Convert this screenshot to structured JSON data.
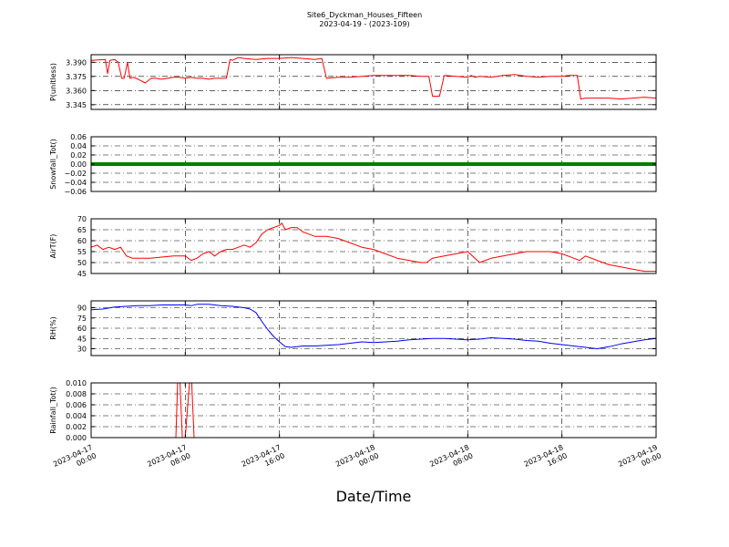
{
  "figure": {
    "title_line1": "Site6_Dyckman_Houses_Fifteen",
    "title_line2": "2023-04-19 - (2023-109)",
    "xlabel": "Date/Time"
  },
  "chart_data": [
    {
      "type": "line",
      "ylabel": "P(unitless)",
      "ylim": [
        3.34,
        3.398
      ],
      "yticks": [
        3.345,
        3.36,
        3.375,
        3.39
      ],
      "ytick_labels": [
        "3.345",
        "3.360",
        "3.375",
        "3.390"
      ],
      "grid": true,
      "color": "#ff0000",
      "x_unit": "hours since 2023-04-17 00:00",
      "series": [
        {
          "x": [
            0,
            1.2,
            1.4,
            1.6,
            2,
            2.3,
            2.6,
            2.8,
            3.1,
            3.3,
            3.6,
            4.0,
            4.6,
            5.1,
            5.5,
            6,
            6.5,
            7,
            7.5,
            8,
            8.5,
            9,
            9.5,
            10,
            10.5,
            11,
            11.5,
            11.8,
            12,
            12.5,
            13,
            14,
            15,
            16,
            17,
            18,
            19,
            19.6,
            20,
            21,
            22,
            23,
            24,
            25,
            26,
            27,
            28,
            28.7,
            29,
            29.6,
            30,
            31,
            32,
            32.3,
            32.6,
            33,
            34,
            35,
            36,
            37,
            38,
            39,
            40,
            40.6,
            41,
            41.3,
            41.6,
            42,
            43,
            44,
            45,
            46,
            47,
            48
          ],
          "y": [
            3.392,
            3.393,
            3.378,
            3.392,
            3.393,
            3.39,
            3.373,
            3.373,
            3.39,
            3.373,
            3.374,
            3.372,
            3.368,
            3.373,
            3.373,
            3.372,
            3.373,
            3.374,
            3.374,
            3.373,
            3.374,
            3.373,
            3.373,
            3.372,
            3.373,
            3.373,
            3.373,
            3.393,
            3.392,
            3.395,
            3.394,
            3.393,
            3.394,
            3.394,
            3.395,
            3.394,
            3.393,
            3.394,
            3.373,
            3.374,
            3.374,
            3.375,
            3.376,
            3.376,
            3.376,
            3.376,
            3.375,
            3.375,
            3.354,
            3.354,
            3.376,
            3.375,
            3.374,
            3.376,
            3.374,
            3.375,
            3.374,
            3.376,
            3.377,
            3.375,
            3.374,
            3.375,
            3.375,
            3.376,
            3.376,
            3.376,
            3.351,
            3.352,
            3.352,
            3.352,
            3.351,
            3.352,
            3.353,
            3.352
          ]
        }
      ],
      "line_width": 1.0
    },
    {
      "type": "line",
      "ylabel": "Snowfall_Tot()",
      "ylim": [
        -0.06,
        0.06
      ],
      "yticks": [
        -0.06,
        -0.04,
        -0.02,
        0.0,
        0.02,
        0.04,
        0.06
      ],
      "ytick_labels": [
        "−0.06",
        "−0.04",
        "−0.02",
        "0.00",
        "0.02",
        "0.04",
        "0.06"
      ],
      "grid": true,
      "color": "#007f00",
      "series": [
        {
          "x": [
            0,
            48
          ],
          "y": [
            0,
            0
          ]
        }
      ],
      "line_width": 4.0
    },
    {
      "type": "line",
      "ylabel": "AirT(F)",
      "ylim": [
        45,
        70
      ],
      "yticks": [
        45,
        50,
        55,
        60,
        65,
        70
      ],
      "ytick_labels": [
        "45",
        "50",
        "55",
        "60",
        "65",
        "70"
      ],
      "grid": true,
      "color": "#ff0000",
      "series": [
        {
          "x": [
            0,
            0.5,
            1,
            1.5,
            2,
            2.5,
            3,
            3.5,
            4,
            5,
            6,
            7,
            8,
            8.5,
            9,
            9.5,
            10,
            10.5,
            11,
            11.5,
            12,
            12.5,
            13,
            13.5,
            14,
            14.5,
            15,
            15.5,
            16,
            16.2,
            16.5,
            17,
            17.5,
            18,
            18.5,
            19,
            20,
            21,
            22,
            23,
            24,
            25,
            26,
            27,
            28,
            28.5,
            29,
            30,
            31,
            32,
            33,
            34,
            35,
            36,
            37,
            38,
            39,
            40,
            41,
            41.5,
            42,
            43,
            44,
            45,
            46,
            47,
            48
          ],
          "y": [
            57,
            58,
            56,
            57,
            56,
            57,
            53,
            52,
            52,
            52,
            52.5,
            53,
            53,
            51,
            52,
            54,
            55,
            53,
            55,
            56,
            56,
            57,
            58,
            57,
            59,
            63,
            65,
            66,
            67,
            68,
            65,
            66,
            66,
            64,
            63,
            62,
            62,
            61,
            59,
            57,
            56,
            54,
            52,
            51,
            50,
            50,
            52,
            53,
            54,
            55,
            50,
            52,
            53,
            54,
            55,
            55,
            55,
            54,
            52,
            51,
            53,
            51,
            49,
            48,
            47,
            46,
            46
          ]
        }
      ],
      "line_width": 1.0
    },
    {
      "type": "line",
      "ylabel": "RH(%)",
      "ylim": [
        20,
        100
      ],
      "yticks": [
        30,
        45,
        60,
        75,
        90
      ],
      "ytick_labels": [
        "30",
        "45",
        "60",
        "75",
        "90"
      ],
      "grid": true,
      "color": "#0000ff",
      "series": [
        {
          "x": [
            0,
            1,
            2,
            3,
            4,
            5,
            6,
            7,
            8,
            8.5,
            9,
            10,
            11,
            12,
            13,
            13.5,
            14,
            14.5,
            15,
            15.5,
            16,
            16.5,
            17,
            18,
            19,
            20,
            21,
            22,
            23,
            24,
            25,
            26,
            27,
            28,
            29,
            30,
            31,
            32,
            33,
            34,
            35,
            36,
            37,
            38,
            39,
            40,
            41,
            42,
            43,
            44,
            45,
            46,
            47,
            48
          ],
          "y": [
            87,
            88,
            91,
            92,
            93,
            93,
            94,
            94,
            94,
            93,
            95,
            95,
            93,
            92,
            90,
            88,
            83,
            70,
            58,
            48,
            40,
            33,
            32,
            34,
            34,
            35,
            36,
            38,
            40,
            39,
            40,
            41,
            43,
            44,
            45,
            45,
            44,
            43,
            44,
            46,
            45,
            44,
            42,
            41,
            38,
            36,
            34,
            32,
            30,
            33,
            37,
            40,
            43,
            45
          ]
        }
      ],
      "line_width": 1.0
    },
    {
      "type": "line",
      "ylabel": "Rainfall_Tot()",
      "ylim": [
        0,
        0.01
      ],
      "yticks": [
        0,
        0.002,
        0.004,
        0.006,
        0.008,
        0.01
      ],
      "ytick_labels": [
        "0.000",
        "0.002",
        "0.004",
        "0.006",
        "0.008",
        "0.010"
      ],
      "grid": true,
      "color": "#ff0000",
      "series": [
        {
          "x": [
            0,
            7.2,
            7.35,
            7.55,
            7.75,
            8.0,
            8.35,
            8.55,
            8.75,
            48
          ],
          "y": [
            0,
            0,
            0.01,
            0.01,
            0,
            0,
            0.01,
            0.01,
            0,
            0
          ]
        }
      ],
      "line_width": 1.0
    }
  ],
  "x_axis": {
    "range_hours": [
      0,
      48
    ],
    "ticks": [
      {
        "h": 0,
        "line1": "2023-04-17",
        "line2": "00:00"
      },
      {
        "h": 8,
        "line1": "2023-04-17",
        "line2": "08:00"
      },
      {
        "h": 16,
        "line1": "2023-04-17",
        "line2": "16:00"
      },
      {
        "h": 24,
        "line1": "2023-04-18",
        "line2": "00:00"
      },
      {
        "h": 32,
        "line1": "2023-04-18",
        "line2": "08:00"
      },
      {
        "h": 40,
        "line1": "2023-04-18",
        "line2": "16:00"
      },
      {
        "h": 48,
        "line1": "2023-04-19",
        "line2": "00:00"
      }
    ]
  }
}
